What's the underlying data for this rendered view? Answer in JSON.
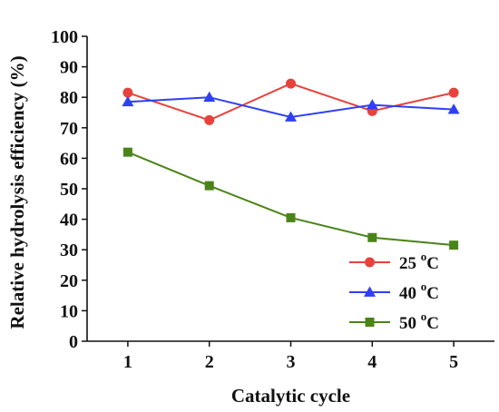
{
  "chart_data": {
    "type": "line",
    "xlabel": "Catalytic cycle",
    "ylabel": "Relative hydrolysis efficiency (%)",
    "categories": [
      1,
      2,
      3,
      4,
      5
    ],
    "xlim": [
      0.5,
      5.5
    ],
    "ylim": [
      0,
      100
    ],
    "yticks": [
      0,
      10,
      20,
      30,
      40,
      50,
      60,
      70,
      80,
      90,
      100
    ],
    "grid": false,
    "legend_position": "bottom-right",
    "series": [
      {
        "name": "25 °C",
        "label_base": "25 ",
        "label_sup": "o",
        "label_unit": "C",
        "color": "#e8423c",
        "marker": "circle",
        "values": [
          81.5,
          72.5,
          84.5,
          75.5,
          81.5
        ]
      },
      {
        "name": "40 °C",
        "label_base": "40 ",
        "label_sup": "o",
        "label_unit": "C",
        "color": "#2f3ff5",
        "marker": "triangle",
        "values": [
          78.5,
          80.0,
          73.5,
          77.5,
          76.0
        ]
      },
      {
        "name": "50 °C",
        "label_base": "50 ",
        "label_sup": "o",
        "label_unit": "C",
        "color": "#4a8419",
        "marker": "square",
        "values": [
          62.0,
          51.0,
          40.5,
          34.0,
          31.5
        ]
      }
    ]
  }
}
